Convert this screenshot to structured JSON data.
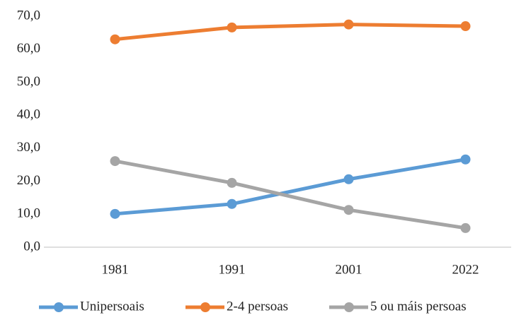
{
  "chart_data": {
    "type": "line",
    "categories": [
      "1981",
      "1991",
      "2001",
      "2022"
    ],
    "series": [
      {
        "name": "Unipersoais",
        "color": "#5b9bd5",
        "values": [
          10.1,
          13.1,
          20.6,
          26.6
        ]
      },
      {
        "name": "2-4 persoas",
        "color": "#ed7d31",
        "values": [
          63.0,
          66.6,
          67.5,
          67.0
        ]
      },
      {
        "name": "5 ou máis persoas",
        "color": "#a5a5a5",
        "values": [
          26.1,
          19.5,
          11.3,
          5.8
        ]
      }
    ],
    "ylim": [
      0,
      70
    ],
    "yticks": [
      {
        "value": 0,
        "label": "0,0"
      },
      {
        "value": 10,
        "label": "10,0"
      },
      {
        "value": 20,
        "label": "20,0"
      },
      {
        "value": 30,
        "label": "30,0"
      },
      {
        "value": 40,
        "label": "40,0"
      },
      {
        "value": 50,
        "label": "50,0"
      },
      {
        "value": 60,
        "label": "60,0"
      },
      {
        "value": 70,
        "label": "70,0"
      }
    ],
    "grid": false,
    "legend": "bottom"
  }
}
